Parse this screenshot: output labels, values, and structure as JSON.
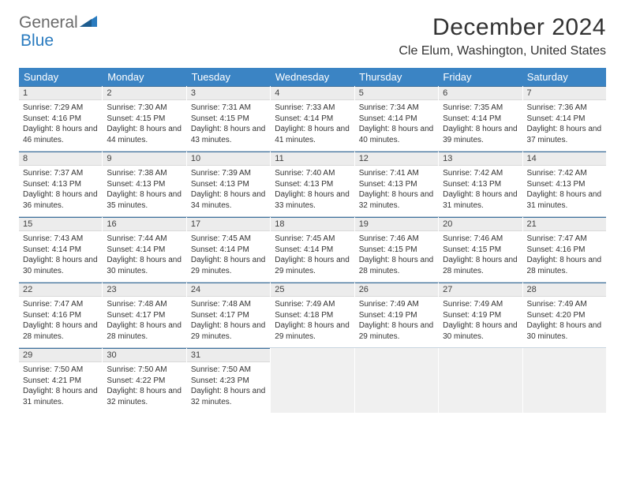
{
  "brand": {
    "part1": "General",
    "part2": "Blue"
  },
  "title": "December 2024",
  "location": "Cle Elum, Washington, United States",
  "colors": {
    "header_bar": "#3b84c4",
    "daynum_bg": "#ececec",
    "daynum_border_top": "#3b6f9b",
    "empty_bg": "#f0f0f0",
    "week_divider": "#c8d4df",
    "text": "#333333"
  },
  "dow": [
    "Sunday",
    "Monday",
    "Tuesday",
    "Wednesday",
    "Thursday",
    "Friday",
    "Saturday"
  ],
  "weeks": [
    [
      {
        "day": "1",
        "sunrise": "Sunrise: 7:29 AM",
        "sunset": "Sunset: 4:16 PM",
        "daylight": "Daylight: 8 hours and 46 minutes."
      },
      {
        "day": "2",
        "sunrise": "Sunrise: 7:30 AM",
        "sunset": "Sunset: 4:15 PM",
        "daylight": "Daylight: 8 hours and 44 minutes."
      },
      {
        "day": "3",
        "sunrise": "Sunrise: 7:31 AM",
        "sunset": "Sunset: 4:15 PM",
        "daylight": "Daylight: 8 hours and 43 minutes."
      },
      {
        "day": "4",
        "sunrise": "Sunrise: 7:33 AM",
        "sunset": "Sunset: 4:14 PM",
        "daylight": "Daylight: 8 hours and 41 minutes."
      },
      {
        "day": "5",
        "sunrise": "Sunrise: 7:34 AM",
        "sunset": "Sunset: 4:14 PM",
        "daylight": "Daylight: 8 hours and 40 minutes."
      },
      {
        "day": "6",
        "sunrise": "Sunrise: 7:35 AM",
        "sunset": "Sunset: 4:14 PM",
        "daylight": "Daylight: 8 hours and 39 minutes."
      },
      {
        "day": "7",
        "sunrise": "Sunrise: 7:36 AM",
        "sunset": "Sunset: 4:14 PM",
        "daylight": "Daylight: 8 hours and 37 minutes."
      }
    ],
    [
      {
        "day": "8",
        "sunrise": "Sunrise: 7:37 AM",
        "sunset": "Sunset: 4:13 PM",
        "daylight": "Daylight: 8 hours and 36 minutes."
      },
      {
        "day": "9",
        "sunrise": "Sunrise: 7:38 AM",
        "sunset": "Sunset: 4:13 PM",
        "daylight": "Daylight: 8 hours and 35 minutes."
      },
      {
        "day": "10",
        "sunrise": "Sunrise: 7:39 AM",
        "sunset": "Sunset: 4:13 PM",
        "daylight": "Daylight: 8 hours and 34 minutes."
      },
      {
        "day": "11",
        "sunrise": "Sunrise: 7:40 AM",
        "sunset": "Sunset: 4:13 PM",
        "daylight": "Daylight: 8 hours and 33 minutes."
      },
      {
        "day": "12",
        "sunrise": "Sunrise: 7:41 AM",
        "sunset": "Sunset: 4:13 PM",
        "daylight": "Daylight: 8 hours and 32 minutes."
      },
      {
        "day": "13",
        "sunrise": "Sunrise: 7:42 AM",
        "sunset": "Sunset: 4:13 PM",
        "daylight": "Daylight: 8 hours and 31 minutes."
      },
      {
        "day": "14",
        "sunrise": "Sunrise: 7:42 AM",
        "sunset": "Sunset: 4:13 PM",
        "daylight": "Daylight: 8 hours and 31 minutes."
      }
    ],
    [
      {
        "day": "15",
        "sunrise": "Sunrise: 7:43 AM",
        "sunset": "Sunset: 4:14 PM",
        "daylight": "Daylight: 8 hours and 30 minutes."
      },
      {
        "day": "16",
        "sunrise": "Sunrise: 7:44 AM",
        "sunset": "Sunset: 4:14 PM",
        "daylight": "Daylight: 8 hours and 30 minutes."
      },
      {
        "day": "17",
        "sunrise": "Sunrise: 7:45 AM",
        "sunset": "Sunset: 4:14 PM",
        "daylight": "Daylight: 8 hours and 29 minutes."
      },
      {
        "day": "18",
        "sunrise": "Sunrise: 7:45 AM",
        "sunset": "Sunset: 4:14 PM",
        "daylight": "Daylight: 8 hours and 29 minutes."
      },
      {
        "day": "19",
        "sunrise": "Sunrise: 7:46 AM",
        "sunset": "Sunset: 4:15 PM",
        "daylight": "Daylight: 8 hours and 28 minutes."
      },
      {
        "day": "20",
        "sunrise": "Sunrise: 7:46 AM",
        "sunset": "Sunset: 4:15 PM",
        "daylight": "Daylight: 8 hours and 28 minutes."
      },
      {
        "day": "21",
        "sunrise": "Sunrise: 7:47 AM",
        "sunset": "Sunset: 4:16 PM",
        "daylight": "Daylight: 8 hours and 28 minutes."
      }
    ],
    [
      {
        "day": "22",
        "sunrise": "Sunrise: 7:47 AM",
        "sunset": "Sunset: 4:16 PM",
        "daylight": "Daylight: 8 hours and 28 minutes."
      },
      {
        "day": "23",
        "sunrise": "Sunrise: 7:48 AM",
        "sunset": "Sunset: 4:17 PM",
        "daylight": "Daylight: 8 hours and 28 minutes."
      },
      {
        "day": "24",
        "sunrise": "Sunrise: 7:48 AM",
        "sunset": "Sunset: 4:17 PM",
        "daylight": "Daylight: 8 hours and 29 minutes."
      },
      {
        "day": "25",
        "sunrise": "Sunrise: 7:49 AM",
        "sunset": "Sunset: 4:18 PM",
        "daylight": "Daylight: 8 hours and 29 minutes."
      },
      {
        "day": "26",
        "sunrise": "Sunrise: 7:49 AM",
        "sunset": "Sunset: 4:19 PM",
        "daylight": "Daylight: 8 hours and 29 minutes."
      },
      {
        "day": "27",
        "sunrise": "Sunrise: 7:49 AM",
        "sunset": "Sunset: 4:19 PM",
        "daylight": "Daylight: 8 hours and 30 minutes."
      },
      {
        "day": "28",
        "sunrise": "Sunrise: 7:49 AM",
        "sunset": "Sunset: 4:20 PM",
        "daylight": "Daylight: 8 hours and 30 minutes."
      }
    ],
    [
      {
        "day": "29",
        "sunrise": "Sunrise: 7:50 AM",
        "sunset": "Sunset: 4:21 PM",
        "daylight": "Daylight: 8 hours and 31 minutes."
      },
      {
        "day": "30",
        "sunrise": "Sunrise: 7:50 AM",
        "sunset": "Sunset: 4:22 PM",
        "daylight": "Daylight: 8 hours and 32 minutes."
      },
      {
        "day": "31",
        "sunrise": "Sunrise: 7:50 AM",
        "sunset": "Sunset: 4:23 PM",
        "daylight": "Daylight: 8 hours and 32 minutes."
      },
      {
        "empty": true
      },
      {
        "empty": true
      },
      {
        "empty": true
      },
      {
        "empty": true
      }
    ]
  ]
}
